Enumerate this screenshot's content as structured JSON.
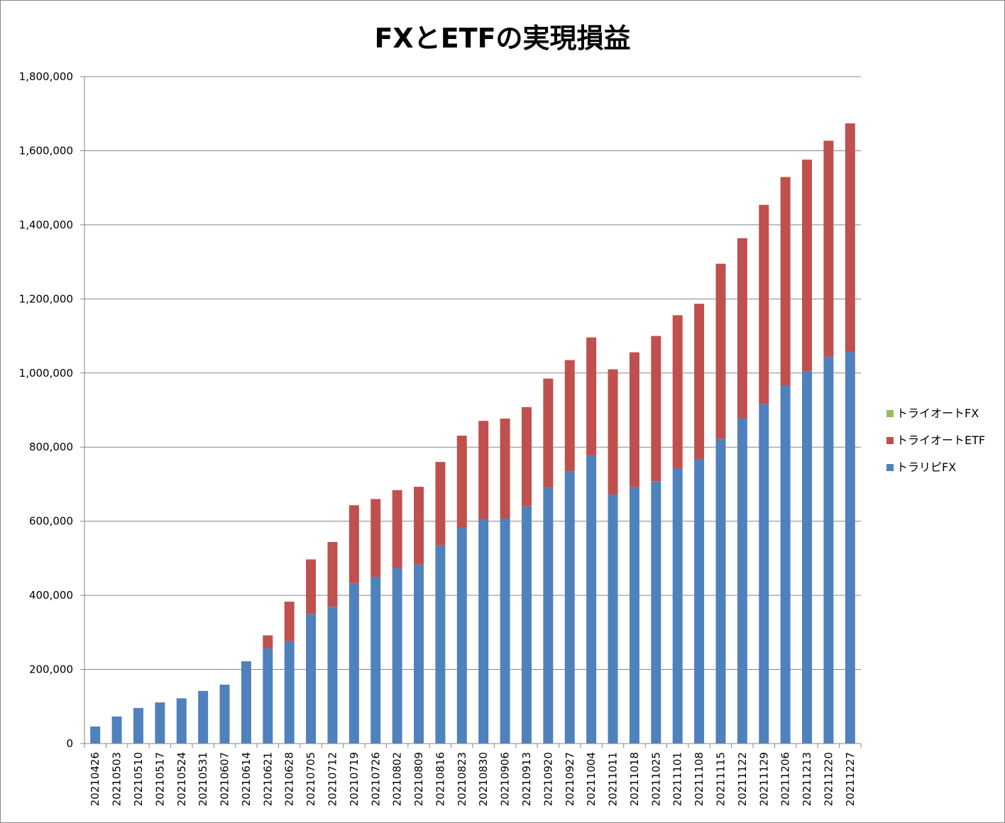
{
  "chart_data": {
    "type": "bar",
    "stacked": true,
    "title": "FXとETFの実現損益",
    "xlabel": "",
    "ylabel": "",
    "ylim": [
      0,
      1800000
    ],
    "yticks": [
      0,
      200000,
      400000,
      600000,
      800000,
      1000000,
      1200000,
      1400000,
      1600000,
      1800000
    ],
    "ytick_labels": [
      "0",
      "200,000",
      "400,000",
      "600,000",
      "800,000",
      "1,000,000",
      "1,200,000",
      "1,400,000",
      "1,600,000",
      "1,800,000"
    ],
    "grid": true,
    "legend_position": "right",
    "categories": [
      "20210426",
      "20210503",
      "20210510",
      "20210517",
      "20210524",
      "20210531",
      "20210607",
      "20210614",
      "20210621",
      "20210628",
      "20210705",
      "20210712",
      "20210719",
      "20210726",
      "20210802",
      "20210809",
      "20210816",
      "20210823",
      "20210830",
      "20210906",
      "20210913",
      "20210920",
      "20210927",
      "20211004",
      "20211011",
      "20211018",
      "20211025",
      "20211101",
      "20211108",
      "20211115",
      "20211122",
      "20211129",
      "20211206",
      "20211213",
      "20211220",
      "20211227"
    ],
    "series": [
      {
        "name": "トラリピFX",
        "color": "#4F81BD",
        "values": [
          46000,
          73000,
          96000,
          111000,
          122000,
          142000,
          159000,
          222000,
          257000,
          276000,
          350000,
          369000,
          433000,
          450000,
          473000,
          483000,
          535000,
          582000,
          605000,
          608000,
          640000,
          690000,
          735000,
          777000,
          672000,
          692000,
          708000,
          742000,
          767000,
          823000,
          878000,
          917000,
          967000,
          1005000,
          1044000,
          1058000
        ]
      },
      {
        "name": "トライオートETF",
        "color": "#C0504D",
        "values": [
          0,
          0,
          0,
          0,
          0,
          0,
          0,
          0,
          35000,
          107000,
          147000,
          175000,
          210000,
          210000,
          211000,
          210000,
          225000,
          249000,
          266000,
          269000,
          268000,
          295000,
          300000,
          319000,
          338000,
          364000,
          392000,
          414000,
          420000,
          472000,
          486000,
          537000,
          562000,
          571000,
          583000,
          616000
        ]
      },
      {
        "name": "トライオートFX",
        "color": "#9BBB59",
        "values": [
          0,
          0,
          0,
          0,
          0,
          0,
          0,
          0,
          0,
          0,
          0,
          0,
          0,
          0,
          0,
          0,
          0,
          0,
          0,
          0,
          0,
          0,
          0,
          0,
          0,
          0,
          0,
          0,
          0,
          0,
          0,
          0,
          0,
          0,
          0,
          0
        ]
      }
    ],
    "legend_order": [
      "トライオートFX",
      "トライオートETF",
      "トラリピFX"
    ]
  }
}
